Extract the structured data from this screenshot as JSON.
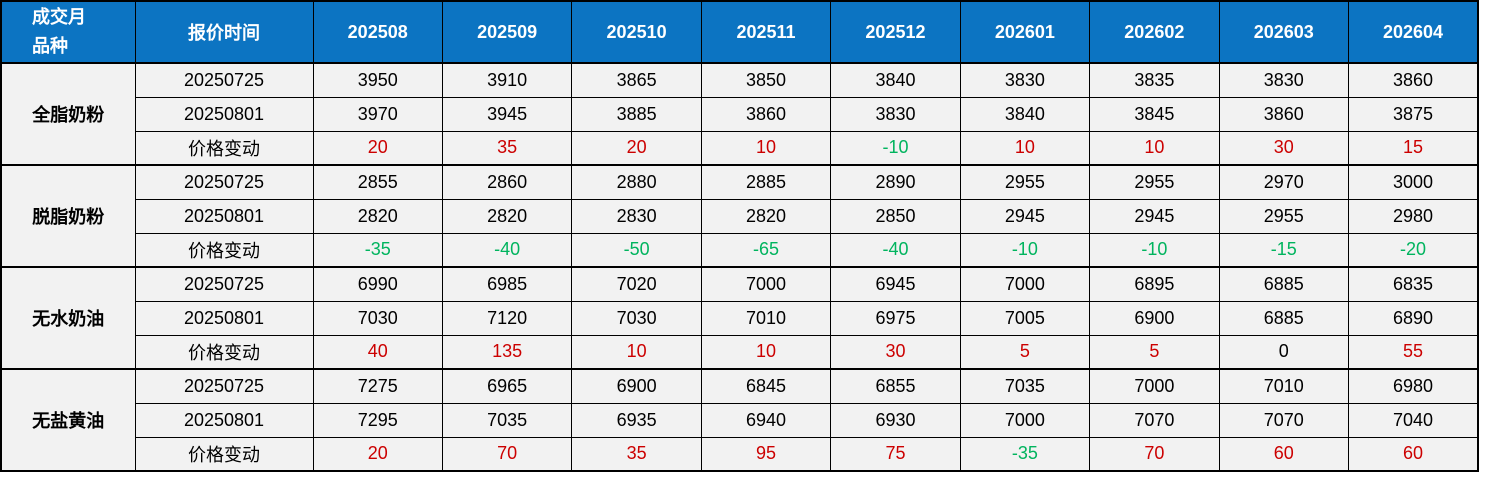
{
  "table": {
    "corner": {
      "line1": "成交月",
      "line2": "品种"
    },
    "quote_time_header": "报价时间",
    "months": [
      "202508",
      "202509",
      "202510",
      "202511",
      "202512",
      "202601",
      "202602",
      "202603",
      "202604"
    ]
  },
  "colors": {
    "header_bg": "#0c74c2",
    "header_text": "#ffffff",
    "cell_bg": "#f2f2f2",
    "increase_red": "#cc0000",
    "decrease_green": "#00b45e",
    "border": "#000000"
  },
  "chart_data": {
    "type": "table",
    "title": "",
    "columns": [
      "成交月/品种",
      "报价时间",
      "202508",
      "202509",
      "202510",
      "202511",
      "202512",
      "202601",
      "202602",
      "202603",
      "202604"
    ],
    "change_row_color_rule": "positive=red, negative=green, zero=black",
    "groups": [
      {
        "product": "全脂奶粉",
        "rows": [
          {
            "label": "20250725",
            "type": "price",
            "values": [
              3950,
              3910,
              3865,
              3850,
              3840,
              3830,
              3835,
              3830,
              3860
            ]
          },
          {
            "label": "20250801",
            "type": "price",
            "values": [
              3970,
              3945,
              3885,
              3860,
              3830,
              3840,
              3845,
              3860,
              3875
            ]
          },
          {
            "label": "价格变动",
            "type": "change",
            "values": [
              20,
              35,
              20,
              10,
              -10,
              10,
              10,
              30,
              15
            ]
          }
        ]
      },
      {
        "product": "脱脂奶粉",
        "rows": [
          {
            "label": "20250725",
            "type": "price",
            "values": [
              2855,
              2860,
              2880,
              2885,
              2890,
              2955,
              2955,
              2970,
              3000
            ]
          },
          {
            "label": "20250801",
            "type": "price",
            "values": [
              2820,
              2820,
              2830,
              2820,
              2850,
              2945,
              2945,
              2955,
              2980
            ]
          },
          {
            "label": "价格变动",
            "type": "change",
            "values": [
              -35,
              -40,
              -50,
              -65,
              -40,
              -10,
              -10,
              -15,
              -20
            ]
          }
        ]
      },
      {
        "product": "无水奶油",
        "rows": [
          {
            "label": "20250725",
            "type": "price",
            "values": [
              6990,
              6985,
              7020,
              7000,
              6945,
              7000,
              6895,
              6885,
              6835
            ]
          },
          {
            "label": "20250801",
            "type": "price",
            "values": [
              7030,
              7120,
              7030,
              7010,
              6975,
              7005,
              6900,
              6885,
              6890
            ]
          },
          {
            "label": "价格变动",
            "type": "change",
            "values": [
              40,
              135,
              10,
              10,
              30,
              5,
              5,
              0,
              55
            ]
          }
        ]
      },
      {
        "product": "无盐黄油",
        "rows": [
          {
            "label": "20250725",
            "type": "price",
            "values": [
              7275,
              6965,
              6900,
              6845,
              6855,
              7035,
              7000,
              7010,
              6980
            ]
          },
          {
            "label": "20250801",
            "type": "price",
            "values": [
              7295,
              7035,
              6935,
              6940,
              6930,
              7000,
              7070,
              7070,
              7040
            ]
          },
          {
            "label": "价格变动",
            "type": "change",
            "values": [
              20,
              70,
              35,
              95,
              75,
              -35,
              70,
              60,
              60
            ]
          }
        ]
      }
    ]
  }
}
